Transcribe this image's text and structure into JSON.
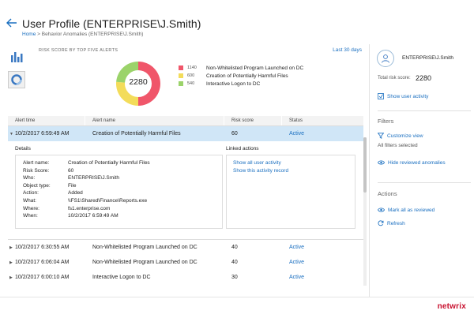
{
  "header": {
    "title": "User Profile (ENTERPRISE\\J.Smith)",
    "breadcrumb_home": "Home",
    "breadcrumb_sep": " > ",
    "breadcrumb_current": "Behavior Anomalies (ENTERPRISE\\J.Smith)"
  },
  "summary": {
    "heading": "RISK SCORE BY TOP FIVE ALERTS",
    "period": "Last 30 days"
  },
  "chart_data": {
    "type": "pie",
    "center_label": "2280",
    "slices": [
      {
        "label": "Non-Whitelisted Program Launched on DC",
        "value": 1140,
        "display": "1140",
        "color": "#f0566a"
      },
      {
        "label": "Creation of Potentially Harmful Files",
        "value": 600,
        "display": "600",
        "color": "#f3dc5a"
      },
      {
        "label": "Interactive Logon to DC",
        "value": 540,
        "display": "540",
        "color": "#9bd36a"
      }
    ]
  },
  "table": {
    "headers": [
      "Alert time",
      "Alert name",
      "Risk score",
      "Status"
    ],
    "selected": {
      "time": "10/2/2017 6:59:49 AM",
      "name": "Creation of Potentially Harmful Files",
      "score": "60",
      "status": "Active"
    },
    "rows": [
      {
        "time": "10/2/2017 6:30:55 AM",
        "name": "Non-Whitelisted Program Launched on DC",
        "score": "40",
        "status": "Active"
      },
      {
        "time": "10/2/2017 6:06:04 AM",
        "name": "Non-Whitelisted Program Launched on DC",
        "score": "40",
        "status": "Active"
      },
      {
        "time": "10/2/2017 6:00:10 AM",
        "name": "Interactive Logon to DC",
        "score": "30",
        "status": "Active"
      }
    ]
  },
  "details": {
    "title": "Details",
    "items": [
      {
        "key": "Alert name:",
        "value": "Creation of Potentially Harmful Files"
      },
      {
        "key": "Risk Score:",
        "value": "60"
      },
      {
        "key": "Who:",
        "value": "ENTERPRISE\\J.Smith"
      },
      {
        "key": "Object type:",
        "value": "File"
      },
      {
        "key": "Action:",
        "value": "Added"
      },
      {
        "key": "What:",
        "value": "\\\\FS1\\Shared\\Finance\\Reports.exe"
      },
      {
        "key": "Where:",
        "value": "fs1.enterprise.com"
      },
      {
        "key": "When:",
        "value": "10/2/2017 6:59:49 AM"
      }
    ]
  },
  "linked": {
    "title": "Linked actions",
    "links": [
      "Show all user activity",
      "Show this activity record"
    ]
  },
  "sidebar": {
    "user": "ENTERPRISE\\J.Smith",
    "risk_label": "Total risk score:",
    "risk_value": "2280",
    "show_activity": "Show user activity",
    "filters_heading": "Filters",
    "customize": "Customize view",
    "all_filters": "All filters selected",
    "hide_reviewed": "Hide reviewed anomalies",
    "actions_heading": "Actions",
    "mark_reviewed": "Mark all as reviewed",
    "refresh": "Refresh"
  },
  "brand": {
    "logo": "netwrix",
    "accent": "#1a6fc0",
    "logo_color": "#c8102e"
  }
}
